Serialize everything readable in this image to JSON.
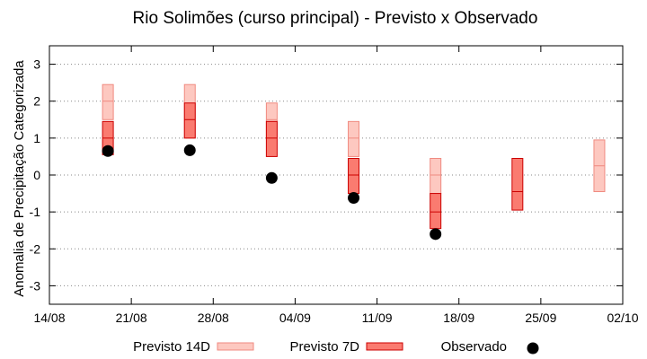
{
  "chart_data": {
    "type": "box-and-point",
    "title": "Rio Solimões (curso principal) - Previsto x Observado",
    "ylabel": "Anomalia de Precipitação Categorizada",
    "xlabel": "",
    "x_ticks": [
      "14/08",
      "21/08",
      "28/08",
      "04/09",
      "11/09",
      "18/09",
      "25/09",
      "02/10"
    ],
    "y_ticks": [
      -3,
      -2,
      -1,
      0,
      1,
      2,
      3
    ],
    "y_tick_labels": [
      "-3",
      "-2",
      "-1",
      "0",
      "1",
      "2",
      "3"
    ],
    "ylim": [
      -3.5,
      3.5
    ],
    "grid": "horizontal dotted",
    "legend": {
      "position": "bottom",
      "entries": [
        "Previsto 14D",
        "Previsto 7D",
        "Observado"
      ]
    },
    "colors": {
      "previsto_14d_fill": "#fdc8c0",
      "previsto_14d_stroke": "#f08a80",
      "previsto_7d_fill": "#fa7b70",
      "previsto_7d_stroke": "#cc0000",
      "observado": "#000000",
      "grid": "#888888"
    },
    "series": [
      {
        "name": "Previsto 14D",
        "kind": "range",
        "data": [
          {
            "x": "19/08",
            "low": 1.5,
            "mid": 2.0,
            "high": 2.45
          },
          {
            "x": "26/08",
            "low": 1.0,
            "mid": 1.5,
            "high": 2.45
          },
          {
            "x": "02/09",
            "low": 1.0,
            "mid": 1.5,
            "high": 1.95
          },
          {
            "x": "09/09",
            "low": 0.5,
            "mid": 1.0,
            "high": 1.45
          },
          {
            "x": "16/09",
            "low": -0.5,
            "mid": 0.0,
            "high": 0.45
          },
          {
            "x": "30/09",
            "low": -0.45,
            "mid": 0.25,
            "high": 0.95
          }
        ]
      },
      {
        "name": "Previsto 7D",
        "kind": "range",
        "data": [
          {
            "x": "19/08",
            "low": 0.55,
            "mid": 1.0,
            "high": 1.45
          },
          {
            "x": "26/08",
            "low": 1.0,
            "mid": 1.5,
            "high": 1.95
          },
          {
            "x": "02/09",
            "low": 0.5,
            "mid": 1.0,
            "high": 1.45
          },
          {
            "x": "09/09",
            "low": -0.5,
            "mid": 0.0,
            "high": 0.45
          },
          {
            "x": "16/09",
            "low": -1.45,
            "mid": -1.0,
            "high": -0.5
          },
          {
            "x": "23/09",
            "low": -0.95,
            "mid": -0.45,
            "high": 0.45
          }
        ]
      },
      {
        "name": "Observado",
        "kind": "point",
        "data": [
          {
            "x": "19/08",
            "y": 0.65
          },
          {
            "x": "26/08",
            "y": 0.67
          },
          {
            "x": "02/09",
            "y": -0.08
          },
          {
            "x": "09/09",
            "y": -0.62
          },
          {
            "x": "16/09",
            "y": -1.6
          }
        ]
      }
    ]
  }
}
